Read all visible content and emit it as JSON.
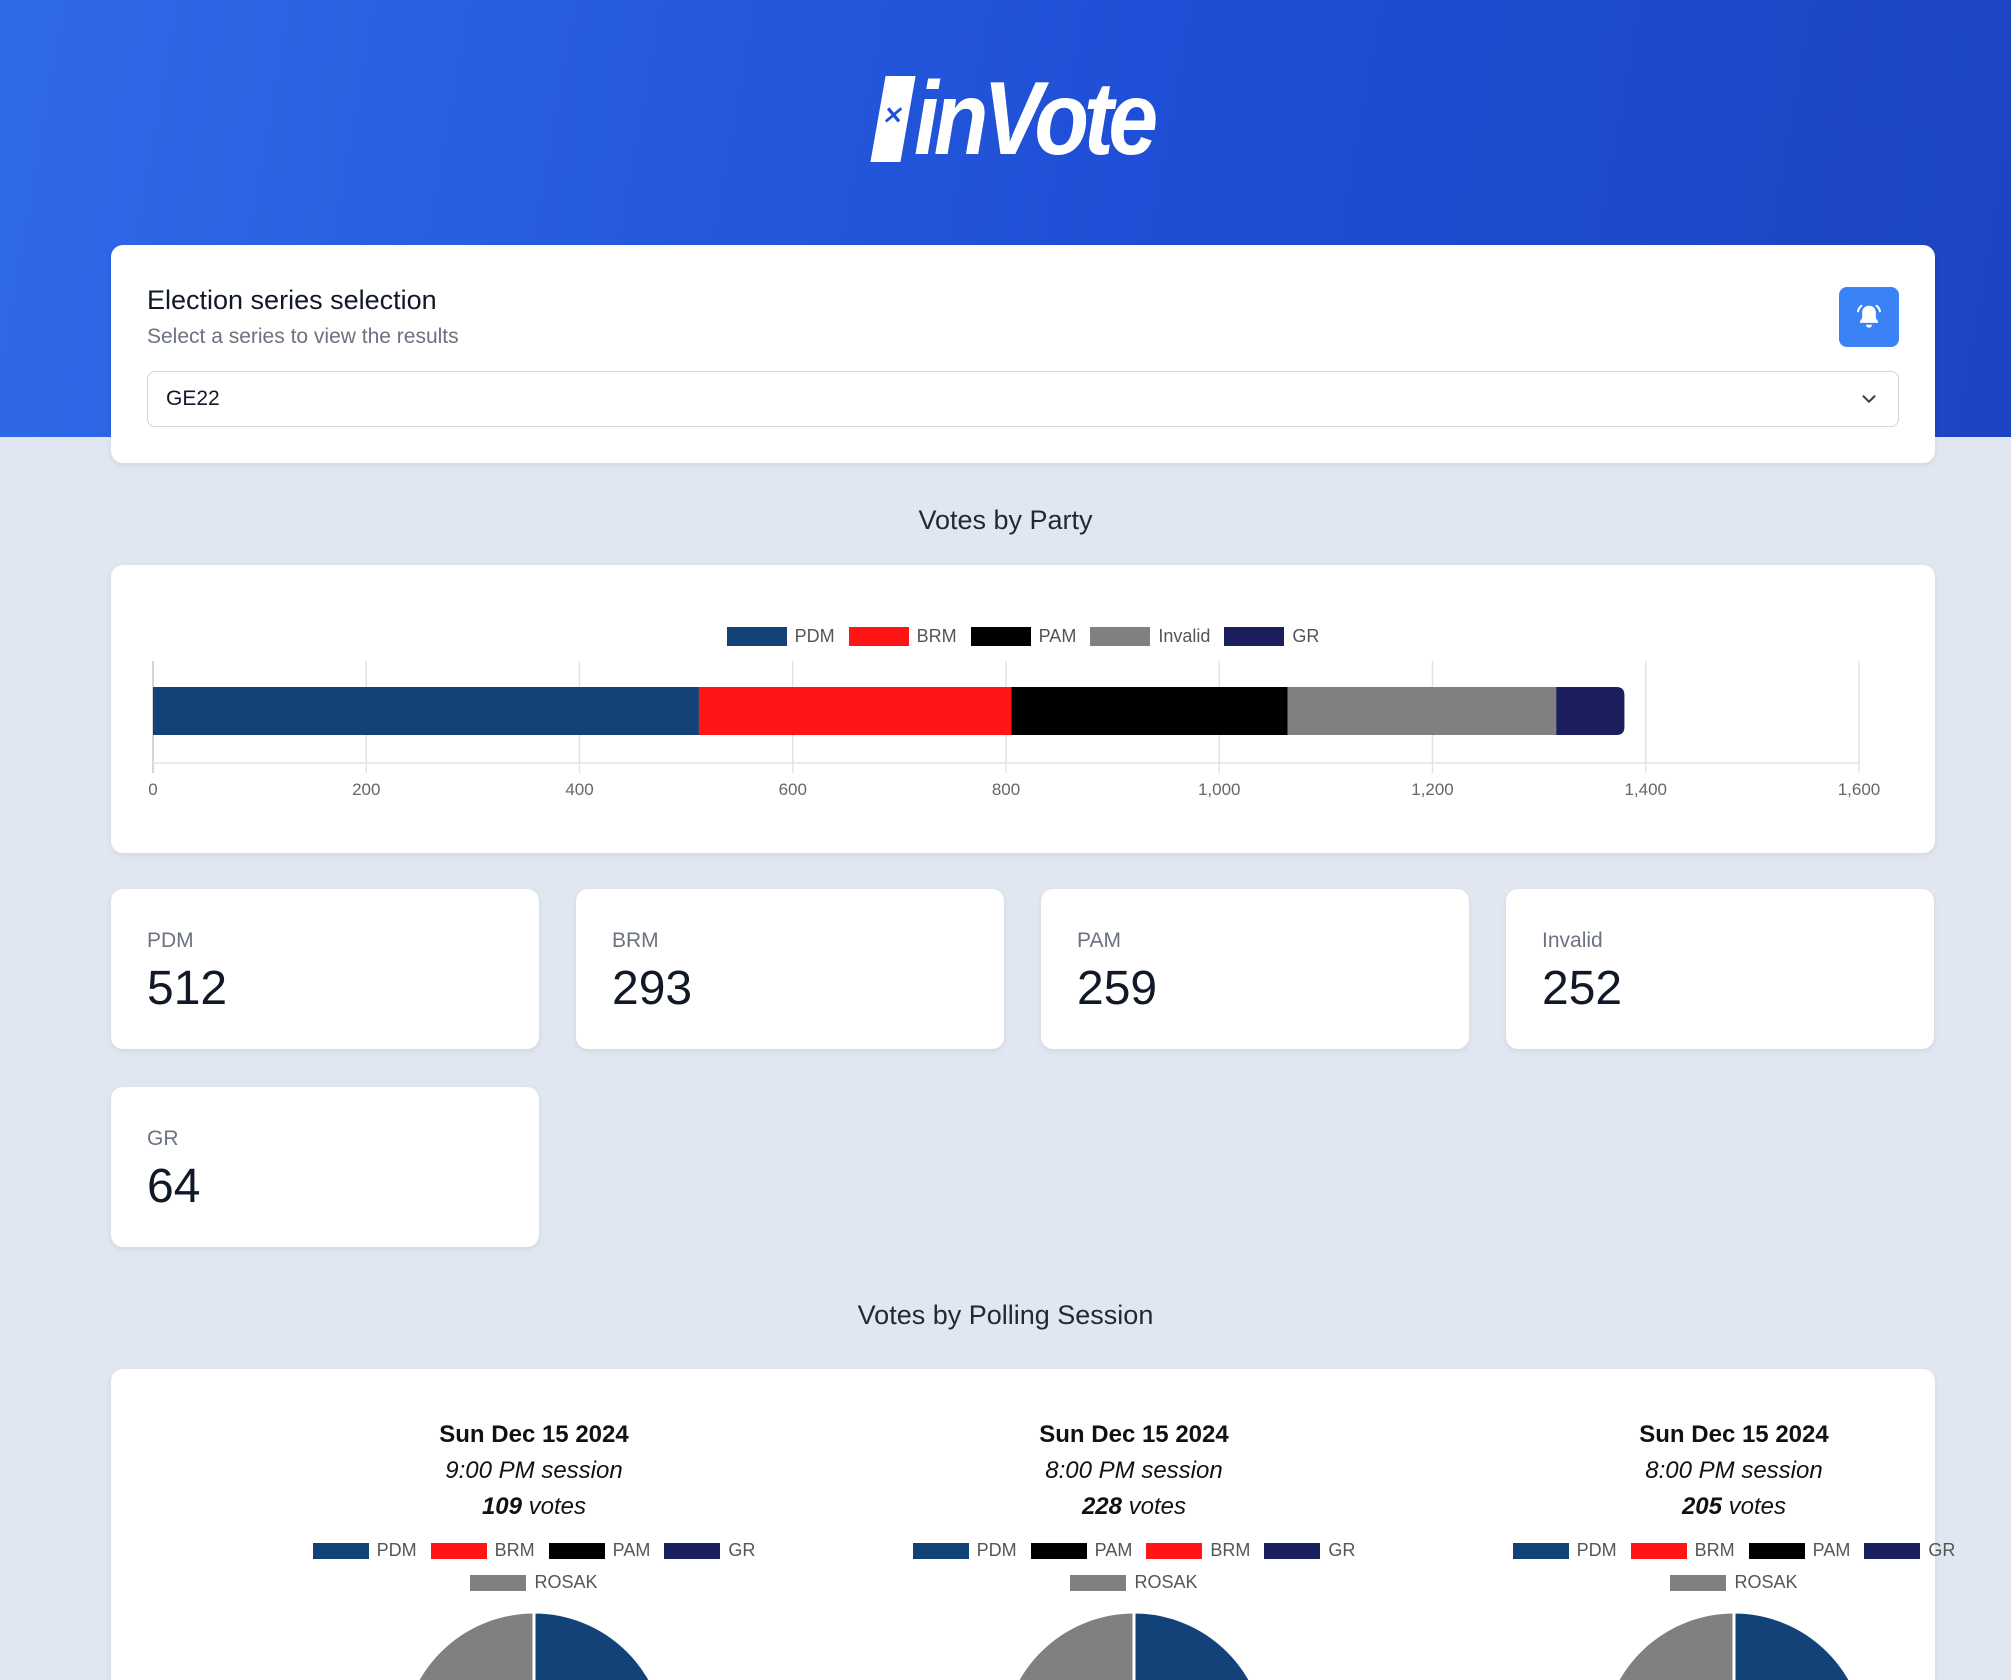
{
  "app": {
    "logo_text": "inVote"
  },
  "series_selection": {
    "title": "Election series selection",
    "subtitle": "Select a series to view the results",
    "selected": "GE22"
  },
  "votes_by_party": {
    "title": "Votes by Party"
  },
  "chart_data": [
    {
      "type": "bar",
      "orientation": "horizontal",
      "stacked": true,
      "series": [
        {
          "name": "PDM",
          "values": [
            512
          ],
          "color": "#134279"
        },
        {
          "name": "BRM",
          "values": [
            293
          ],
          "color": "#ff1515"
        },
        {
          "name": "PAM",
          "values": [
            259
          ],
          "color": "#000000"
        },
        {
          "name": "Invalid",
          "values": [
            252
          ],
          "color": "#808080"
        },
        {
          "name": "GR",
          "values": [
            64
          ],
          "color": "#1b1f5e"
        }
      ],
      "xlim": [
        0,
        1600
      ],
      "xticks": [
        "0",
        "200",
        "400",
        "600",
        "800",
        "1,000",
        "1,200",
        "1,400",
        "1,600"
      ],
      "legend": "top-center",
      "grid": true
    },
    {
      "type": "pie",
      "series": [
        {
          "name": "PDM",
          "color": "#134279"
        },
        {
          "name": "BRM",
          "color": "#ff1515"
        },
        {
          "name": "PAM",
          "color": "#000000"
        },
        {
          "name": "GR",
          "color": "#1b1f5e"
        },
        {
          "name": "ROSAK",
          "color": "#808080"
        }
      ],
      "legend": "top"
    },
    {
      "type": "pie",
      "series": [
        {
          "name": "PDM",
          "color": "#134279"
        },
        {
          "name": "PAM",
          "color": "#000000"
        },
        {
          "name": "BRM",
          "color": "#ff1515"
        },
        {
          "name": "GR",
          "color": "#1b1f5e"
        },
        {
          "name": "ROSAK",
          "color": "#808080"
        }
      ],
      "legend": "top"
    },
    {
      "type": "pie",
      "series": [
        {
          "name": "PDM",
          "color": "#134279"
        },
        {
          "name": "BRM",
          "color": "#ff1515"
        },
        {
          "name": "PAM",
          "color": "#000000"
        },
        {
          "name": "GR",
          "color": "#1b1f5e"
        },
        {
          "name": "ROSAK",
          "color": "#808080"
        }
      ],
      "legend": "top"
    }
  ],
  "stats": [
    {
      "label": "PDM",
      "value": "512"
    },
    {
      "label": "BRM",
      "value": "293"
    },
    {
      "label": "PAM",
      "value": "259"
    },
    {
      "label": "Invalid",
      "value": "252"
    },
    {
      "label": "GR",
      "value": "64"
    }
  ],
  "votes_by_session": {
    "title": "Votes by Polling Session",
    "sessions": [
      {
        "date": "Sun Dec 15 2024",
        "session": "9:00 PM session",
        "votes": "109",
        "votes_suffix": " votes"
      },
      {
        "date": "Sun Dec 15 2024",
        "session": "8:00 PM session",
        "votes": "228",
        "votes_suffix": " votes"
      },
      {
        "date": "Sun Dec 15 2024",
        "session": "8:00 PM session",
        "votes": "205",
        "votes_suffix": " votes"
      }
    ]
  },
  "icons": {
    "notification": "bell-icon",
    "dropdown": "chevron-down-icon"
  },
  "colors": {
    "accent": "#3b82f6",
    "header": "#2257dc"
  }
}
